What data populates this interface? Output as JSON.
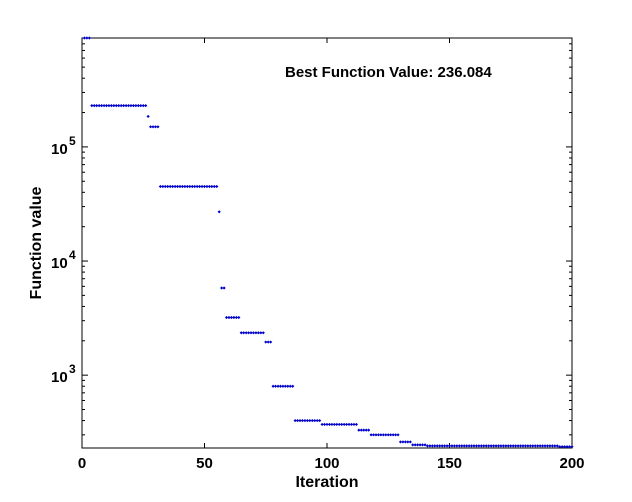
{
  "chart_data": {
    "type": "scatter",
    "title": "",
    "xlabel": "Iteration",
    "ylabel": "Function value",
    "annotation": "Best Function Value: 236.084",
    "xlim": [
      0,
      200
    ],
    "ylim": [
      230,
      900000
    ],
    "yscale": "log",
    "grid": false,
    "marker_color": "#0000cc",
    "x_ticks": [
      0,
      50,
      100,
      150,
      200
    ],
    "y_ticks": [
      {
        "value": 1000,
        "base": "10",
        "exp": "3"
      },
      {
        "value": 10000,
        "base": "10",
        "exp": "4"
      },
      {
        "value": 100000,
        "base": "10",
        "exp": "5"
      }
    ],
    "series": [
      {
        "segments": [
          {
            "from": 1,
            "to": 3,
            "y": 900000
          },
          {
            "from": 4,
            "to": 26,
            "y": 230000
          },
          {
            "from": 27,
            "to": 27,
            "y": 185000
          },
          {
            "from": 28,
            "to": 31,
            "y": 150000
          },
          {
            "from": 32,
            "to": 55,
            "y": 45000
          },
          {
            "from": 56,
            "to": 56,
            "y": 27000
          },
          {
            "from": 57,
            "to": 58,
            "y": 5800
          },
          {
            "from": 59,
            "to": 64,
            "y": 3200
          },
          {
            "from": 65,
            "to": 74,
            "y": 2350
          },
          {
            "from": 75,
            "to": 77,
            "y": 1950
          },
          {
            "from": 78,
            "to": 86,
            "y": 800
          },
          {
            "from": 87,
            "to": 97,
            "y": 400
          },
          {
            "from": 98,
            "to": 112,
            "y": 370
          },
          {
            "from": 113,
            "to": 117,
            "y": 330
          },
          {
            "from": 118,
            "to": 129,
            "y": 300
          },
          {
            "from": 130,
            "to": 134,
            "y": 260
          },
          {
            "from": 135,
            "to": 140,
            "y": 245
          },
          {
            "from": 141,
            "to": 194,
            "y": 240
          },
          {
            "from": 195,
            "to": 200,
            "y": 236.084
          }
        ]
      }
    ]
  }
}
